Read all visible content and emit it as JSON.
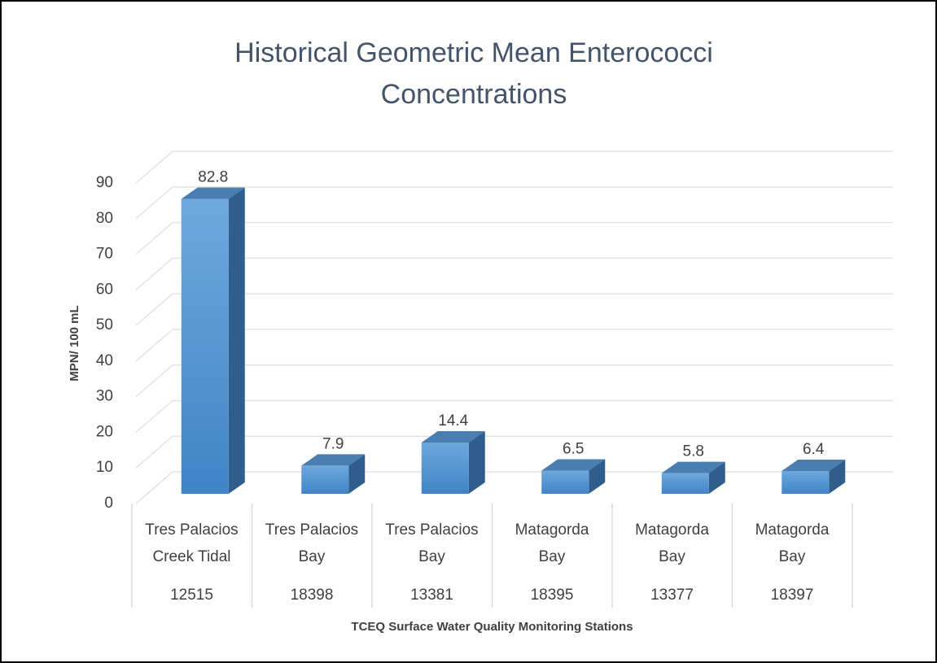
{
  "chart_data": {
    "type": "bar",
    "title": "Historical Geometric Mean Enterococci Concentrations",
    "x_label": "TCEQ Surface Water Quality Monitoring Stations",
    "y_label": "MPN/ 100 mL",
    "categories": [
      {
        "name": "Tres Palacios Creek Tidal",
        "station": "12515"
      },
      {
        "name": "Tres Palacios Bay",
        "station": "18398"
      },
      {
        "name": "Tres Palacios Bay",
        "station": "13381"
      },
      {
        "name": "Matagorda Bay",
        "station": "18395"
      },
      {
        "name": "Matagorda Bay",
        "station": "13377"
      },
      {
        "name": "Matagorda Bay",
        "station": "18397"
      }
    ],
    "values": [
      82.8,
      7.9,
      14.4,
      6.5,
      5.8,
      6.4
    ],
    "color": "#5b9bd5",
    "ylim": [
      0,
      90
    ],
    "yticks": [
      0,
      10,
      20,
      30,
      40,
      50,
      60,
      70,
      80,
      90
    ],
    "grid": true
  }
}
